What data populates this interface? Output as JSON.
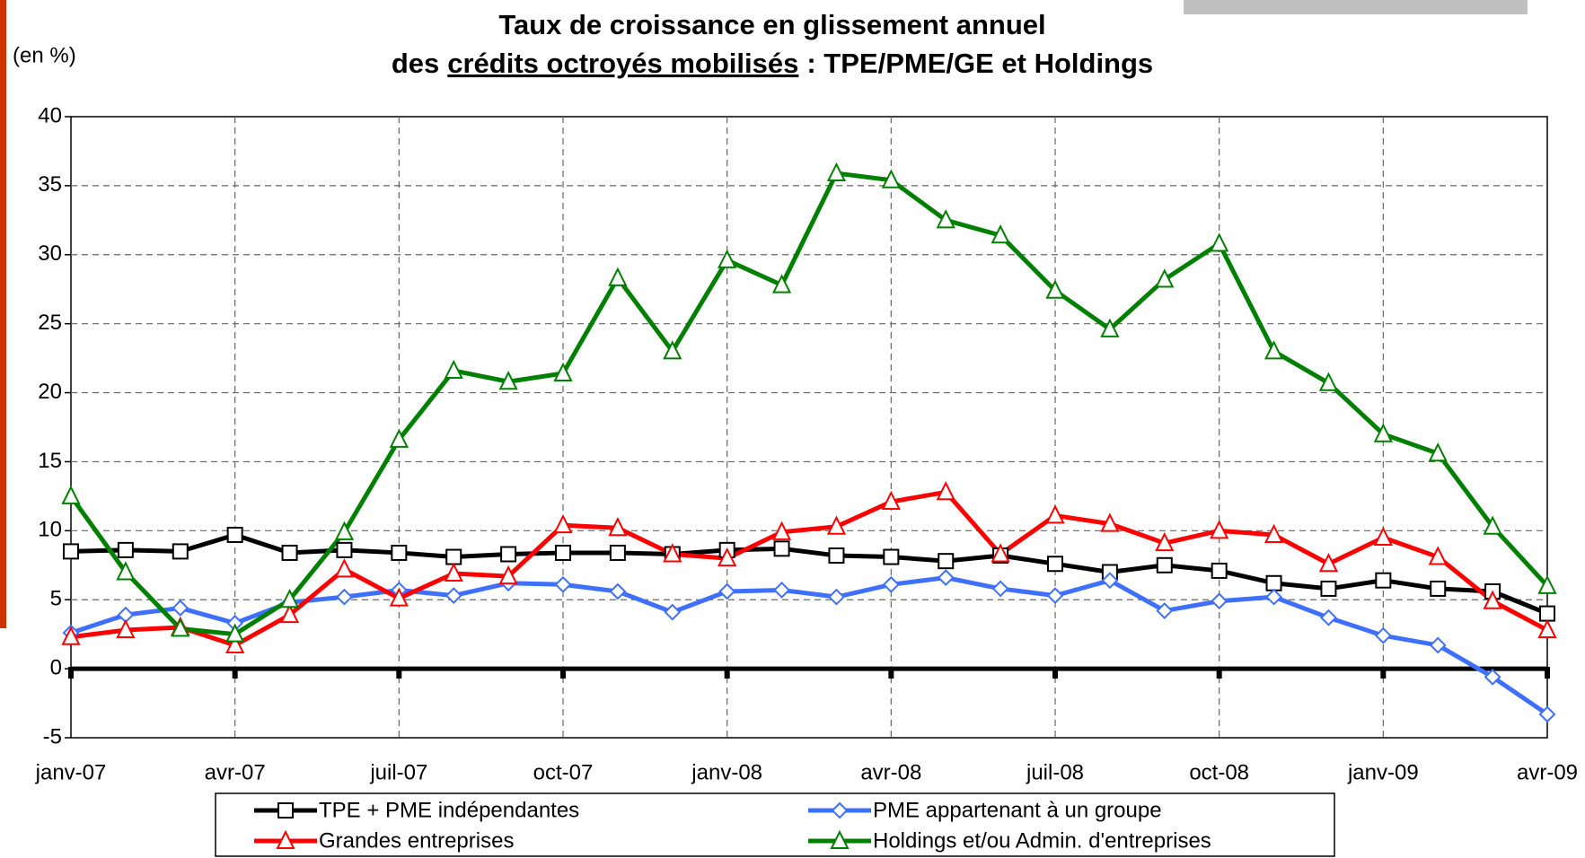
{
  "chart_data": {
    "type": "line",
    "title": "Taux de croissance en glissement annuel",
    "subtitle": [
      "des",
      "crédits octroyés mobilisés",
      ": TPE/PME/GE et Holdings"
    ],
    "y_label": "(en %)",
    "categories": [
      "janv-07",
      null,
      null,
      "avr-07",
      null,
      null,
      "juil-07",
      null,
      null,
      "oct-07",
      null,
      null,
      "janv-08",
      null,
      null,
      "avr-08",
      null,
      null,
      "juil-08",
      null,
      null,
      "oct-08",
      null,
      null,
      "janv-09",
      null,
      null,
      "avr-09"
    ],
    "series": [
      {
        "name": "TPE + PME indépendantes",
        "color": "#000000",
        "marker": "square",
        "values": [
          8.5,
          8.6,
          8.5,
          9.7,
          8.4,
          8.6,
          8.4,
          8.1,
          8.3,
          8.4,
          8.4,
          8.3,
          8.6,
          8.7,
          8.2,
          8.1,
          7.8,
          8.2,
          7.6,
          7.0,
          7.5,
          7.1,
          6.2,
          5.8,
          6.4,
          5.8,
          5.6,
          4.0
        ]
      },
      {
        "name": "PME appartenant à un groupe",
        "color": "#3f6fff",
        "marker": "diamond",
        "values": [
          2.6,
          3.9,
          4.4,
          3.3,
          4.8,
          5.2,
          5.7,
          5.3,
          6.2,
          6.1,
          5.6,
          4.1,
          5.6,
          5.7,
          5.2,
          6.1,
          6.6,
          5.8,
          5.3,
          6.4,
          4.2,
          4.9,
          5.2,
          3.7,
          2.4,
          1.7,
          -0.6,
          -3.3
        ]
      },
      {
        "name": "Grandes entreprises",
        "color": "#ff0000",
        "marker": "triangle",
        "values": [
          2.3,
          2.8,
          3.0,
          1.7,
          3.9,
          7.2,
          5.1,
          6.9,
          6.7,
          10.4,
          10.2,
          8.3,
          8.0,
          9.9,
          10.3,
          12.1,
          12.8,
          8.3,
          11.1,
          10.5,
          9.1,
          10.0,
          9.7,
          7.6,
          9.5,
          8.1,
          4.9,
          2.8
        ]
      },
      {
        "name": "Holdings et/ou Admin. d'entreprises",
        "color": "#008000",
        "marker": "triangle",
        "values": [
          12.5,
          7.0,
          2.9,
          2.5,
          5.0,
          9.9,
          16.6,
          21.6,
          20.8,
          21.4,
          28.3,
          23.0,
          29.6,
          27.8,
          35.9,
          35.4,
          32.5,
          31.4,
          27.4,
          24.6,
          28.2,
          30.8,
          23.0,
          20.7,
          17.0,
          15.6,
          10.3,
          6.0
        ]
      }
    ],
    "ylim": [
      -5,
      40
    ],
    "yticks": [
      -5,
      0,
      5,
      10,
      15,
      20,
      25,
      30,
      35,
      40
    ],
    "grid": true
  }
}
